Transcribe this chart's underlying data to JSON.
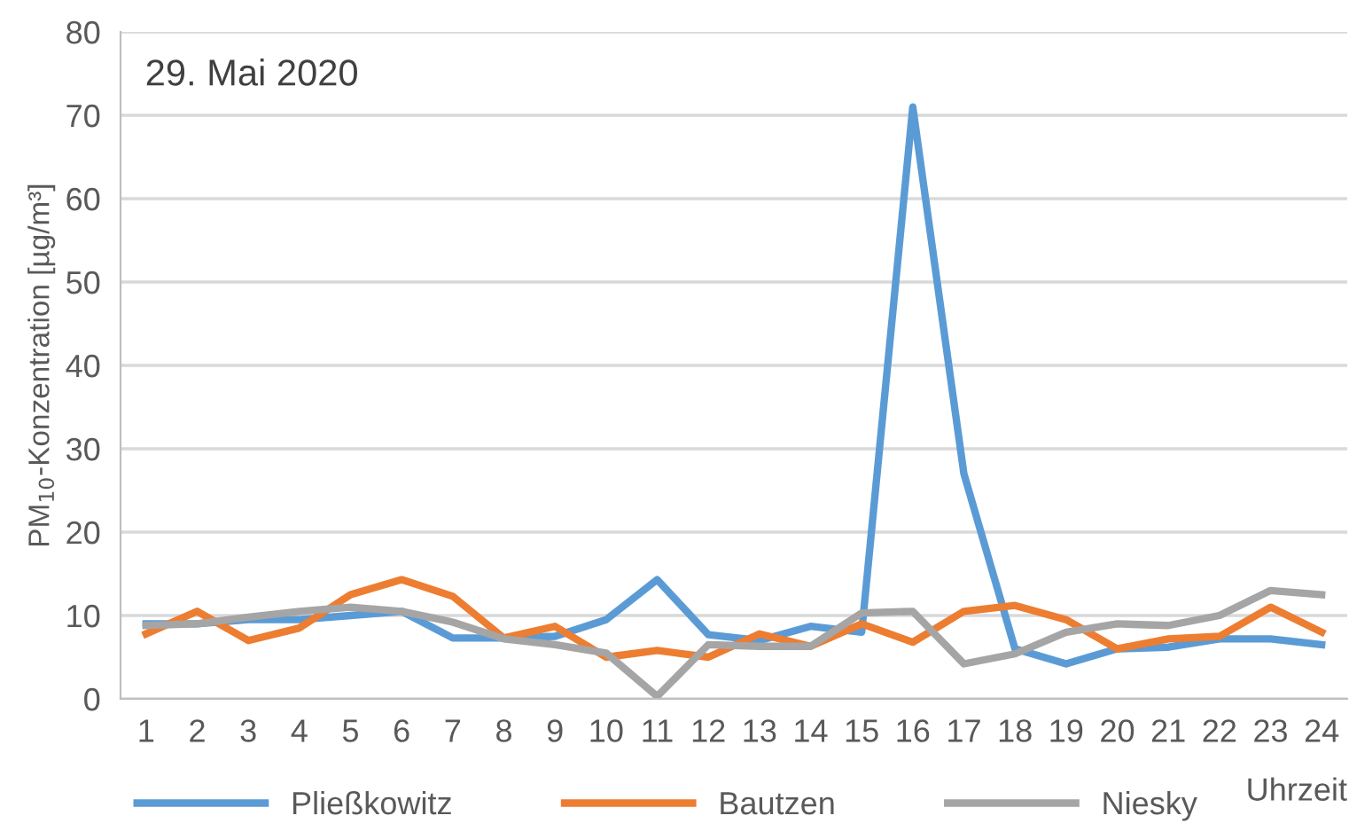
{
  "chart_data": {
    "type": "line",
    "ylabel": "PM$_{10}$-Konzentration [µg/m³]",
    "xlabel": "Uhrzeit",
    "annotations": [
      "29. Mai 2020"
    ],
    "categories": [
      "1",
      "2",
      "3",
      "4",
      "5",
      "6",
      "7",
      "8",
      "9",
      "10",
      "11",
      "12",
      "13",
      "14",
      "15",
      "16",
      "17",
      "18",
      "19",
      "20",
      "21",
      "22",
      "23",
      "24"
    ],
    "series": [
      {
        "name": "Pließkowitz",
        "color": "#5b9bd5",
        "values": [
          9,
          9,
          9.5,
          9.5,
          10,
          10.5,
          7.3,
          7.3,
          7.5,
          9.5,
          14.3,
          7.7,
          7,
          8.7,
          8,
          71,
          27,
          6,
          4.2,
          6,
          6.2,
          7.2,
          7.2,
          6.5
        ]
      },
      {
        "name": "Bautzen",
        "color": "#ed7d31",
        "values": [
          7.8,
          10.5,
          7,
          8.5,
          12.5,
          14.3,
          12.3,
          7.3,
          8.7,
          5,
          5.8,
          5,
          7.8,
          6.3,
          9,
          6.8,
          10.5,
          11.2,
          9.5,
          6,
          7.2,
          7.5,
          11,
          8
        ]
      },
      {
        "name": "Niesky",
        "color": "#a5a5a5",
        "values": [
          8.8,
          9,
          9.8,
          10.5,
          11,
          10.5,
          9.2,
          7.2,
          6.5,
          5.5,
          0.3,
          6.5,
          6.3,
          6.3,
          10.3,
          10.5,
          4.2,
          5.4,
          8,
          9,
          8.8,
          10,
          13,
          12.5
        ]
      }
    ],
    "ylim": [
      0,
      80
    ],
    "yticks": [
      0,
      10,
      20,
      30,
      40,
      50,
      60,
      70,
      80
    ],
    "grid": "y",
    "legend": "bottom left",
    "marker": "none",
    "line_style": "solid"
  }
}
